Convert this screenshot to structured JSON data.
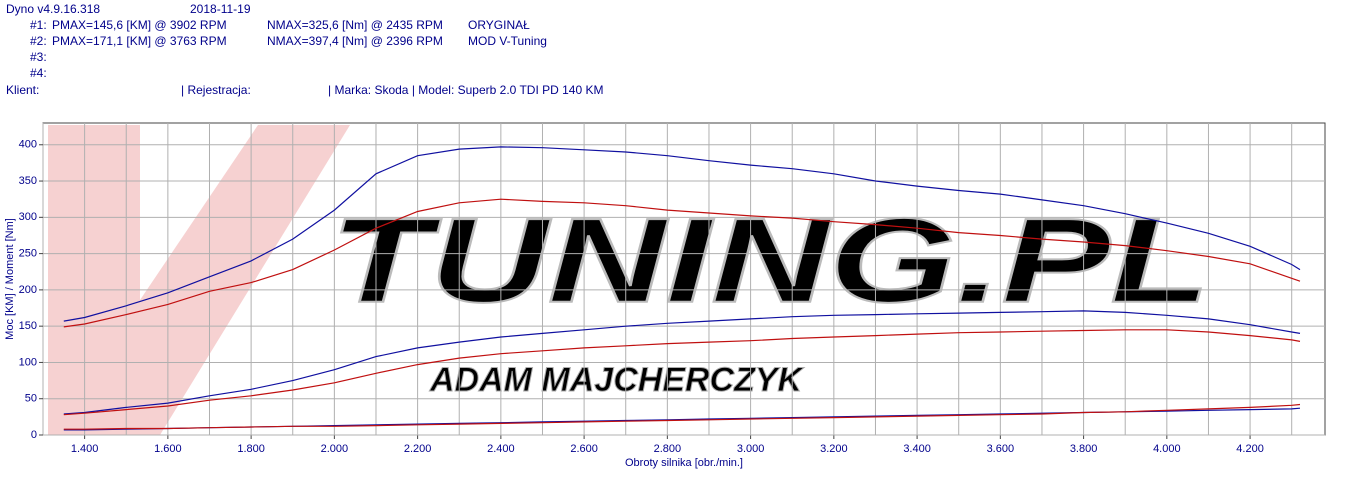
{
  "header": {
    "software": "Dyno v4.9.16.318",
    "date": "2018-11-19",
    "runs": [
      {
        "label": "#1:",
        "pmax": "PMAX=145,6 [KM] @ 3902 RPM",
        "nmax": "NMAX=325,6 [Nm] @ 2435 RPM",
        "desc": "ORYGINAŁ"
      },
      {
        "label": "#2:",
        "pmax": "PMAX=171,1 [KM] @ 3763 RPM",
        "nmax": "NMAX=397,4 [Nm] @ 2396 RPM",
        "desc": "MOD V-Tuning"
      },
      {
        "label": "#3:"
      },
      {
        "label": "#4:"
      }
    ],
    "client": "Klient:",
    "registration": "| Rejestracja:",
    "car": "| Marka: Skoda | Model: Superb 2.0 TDI PD 140 KM"
  },
  "chart_data": {
    "type": "line",
    "ylabel": "Moc [KM] / Moment [Nm]",
    "xlabel": "Obroty silnika [obr./min.]",
    "watermark": "TUNING.PL",
    "watermark_subtitle": "ADAM MAJCHERCZYK",
    "xlim": [
      1300,
      4380
    ],
    "ylim": [
      0,
      430
    ],
    "xticks": [
      {
        "value": 1400,
        "label": "1.400"
      },
      {
        "value": 1600,
        "label": "1.600"
      },
      {
        "value": 1800,
        "label": "1.800"
      },
      {
        "value": 2000,
        "label": "2.000"
      },
      {
        "value": 2200,
        "label": "2.200"
      },
      {
        "value": 2400,
        "label": "2.400"
      },
      {
        "value": 2600,
        "label": "2.600"
      },
      {
        "value": 2800,
        "label": "2.800"
      },
      {
        "value": 3000,
        "label": "3.000"
      },
      {
        "value": 3200,
        "label": "3.200"
      },
      {
        "value": 3400,
        "label": "3.400"
      },
      {
        "value": 3600,
        "label": "3.600"
      },
      {
        "value": 3800,
        "label": "3.800"
      },
      {
        "value": 4000,
        "label": "4.000"
      },
      {
        "value": 4200,
        "label": "4.200"
      }
    ],
    "xgrid_minor": [
      1300,
      1500,
      1700,
      1900,
      2100,
      2300,
      2500,
      2700,
      2900,
      3100,
      3300,
      3500,
      3700,
      3900,
      4100,
      4300
    ],
    "yticks": [
      0,
      50,
      100,
      150,
      200,
      250,
      300,
      350,
      400
    ],
    "grid": true,
    "x": [
      1350,
      1400,
      1500,
      1600,
      1700,
      1800,
      1900,
      2000,
      2100,
      2200,
      2300,
      2400,
      2500,
      2600,
      2700,
      2800,
      2900,
      3000,
      3100,
      3200,
      3300,
      3400,
      3500,
      3600,
      3700,
      3800,
      3900,
      4000,
      4100,
      4200,
      4300,
      4320
    ],
    "series": [
      {
        "color": "#1010a0",
        "values": [
          157,
          162,
          178,
          196,
          218,
          240,
          270,
          310,
          360,
          385,
          394,
          397,
          396,
          393,
          390,
          385,
          378,
          372,
          367,
          360,
          350,
          343,
          337,
          332,
          324,
          316,
          305,
          292,
          278,
          260,
          235,
          228
        ]
      },
      {
        "color": "#c01010",
        "values": [
          149,
          153,
          166,
          180,
          198,
          210,
          228,
          255,
          285,
          308,
          320,
          325,
          322,
          320,
          316,
          310,
          306,
          302,
          299,
          294,
          290,
          285,
          279,
          275,
          270,
          266,
          261,
          254,
          246,
          236,
          216,
          212
        ]
      },
      {
        "color": "#1010a0",
        "values": [
          29,
          31,
          38,
          44,
          54,
          63,
          75,
          90,
          108,
          120,
          128,
          135,
          140,
          145,
          150,
          154,
          157,
          160,
          163,
          165,
          166,
          167,
          168,
          169,
          170,
          171,
          169,
          165,
          160,
          152,
          142,
          140
        ]
      },
      {
        "color": "#c01010",
        "values": [
          28,
          30,
          35,
          40,
          48,
          54,
          62,
          72,
          85,
          97,
          106,
          112,
          116,
          120,
          123,
          126,
          128,
          130,
          133,
          135,
          137,
          139,
          141,
          142,
          143,
          144,
          145,
          145,
          142,
          137,
          131,
          129
        ]
      },
      {
        "color": "#1010a0",
        "values": [
          7,
          7,
          8,
          9,
          10,
          11,
          12,
          13,
          14,
          15,
          16,
          17,
          18,
          19,
          20,
          21,
          22,
          23,
          24,
          25,
          26,
          27,
          28,
          29,
          30,
          31,
          32,
          33,
          34,
          35,
          36,
          37
        ]
      },
      {
        "color": "#c01010",
        "values": [
          8,
          8,
          9,
          9,
          10,
          11,
          12,
          12,
          13,
          14,
          15,
          16,
          17,
          18,
          19,
          20,
          21,
          22,
          23,
          24,
          25,
          26,
          27,
          28,
          29,
          31,
          32,
          34,
          36,
          38,
          41,
          42
        ]
      }
    ]
  }
}
